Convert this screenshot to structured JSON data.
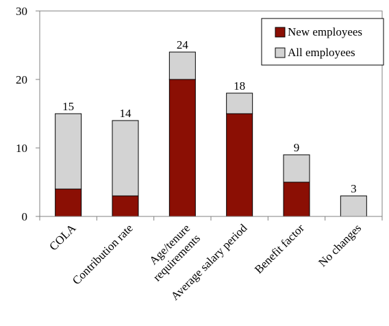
{
  "chart_data": {
    "type": "bar",
    "stacked": true,
    "categories": [
      "COLA",
      "Contribution rate",
      "Age/tenure requirements",
      "Average salary period",
      "Benefit factor",
      "No changes"
    ],
    "category_lines": [
      [
        "COLA"
      ],
      [
        "Contribution rate"
      ],
      [
        "Age/tenure",
        "requirements"
      ],
      [
        "Average salary period"
      ],
      [
        "Benefit factor"
      ],
      [
        "No changes"
      ]
    ],
    "series": [
      {
        "name": "New employees",
        "color": "#8B0F04",
        "values": [
          4,
          3,
          20,
          15,
          5,
          0
        ]
      },
      {
        "name": "All employees",
        "color": "#D3D3D3",
        "values": [
          11,
          11,
          4,
          3,
          4,
          3
        ]
      }
    ],
    "totals": [
      15,
      14,
      24,
      18,
      9,
      3
    ],
    "totals_labels": [
      "15",
      "14",
      "24",
      "18",
      "9",
      "3"
    ],
    "ylim": [
      0,
      30
    ],
    "yticks": [
      0,
      10,
      20,
      30
    ],
    "ytick_labels": [
      "0",
      "10",
      "20",
      "30"
    ],
    "grid": false,
    "legend_position": "top-right",
    "title": "",
    "xlabel": "",
    "ylabel": ""
  }
}
